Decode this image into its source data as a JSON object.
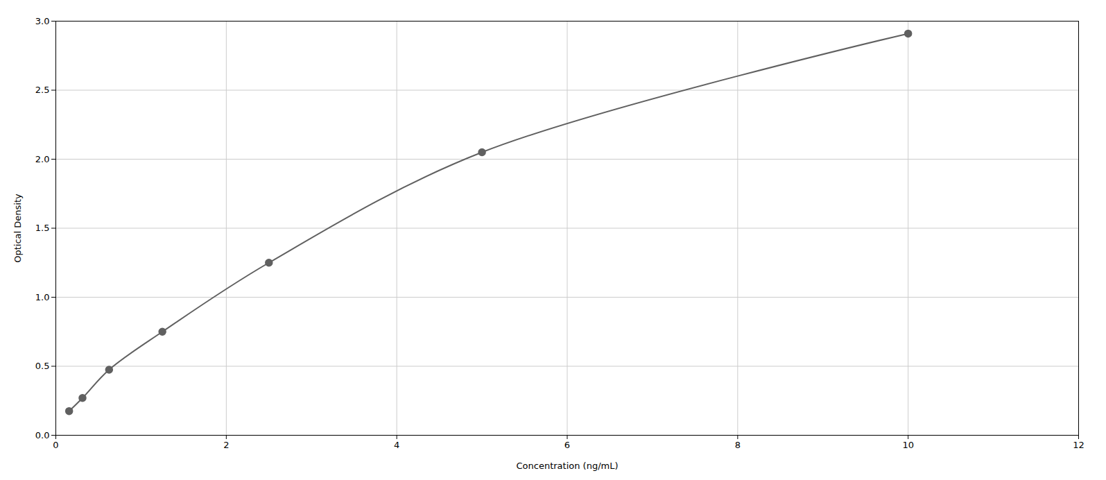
{
  "chart_data": {
    "type": "line",
    "marker": "circle",
    "x": [
      0.156,
      0.313,
      0.625,
      1.25,
      2.5,
      5.0,
      10.0
    ],
    "values": [
      0.175,
      0.27,
      0.475,
      0.75,
      1.25,
      2.05,
      2.91
    ],
    "color": "#606060",
    "xlabel": "Concentration (ng/mL)",
    "ylabel": "Optical Density",
    "xlim": [
      0,
      12
    ],
    "ylim": [
      0,
      3.0
    ],
    "xticks": [
      0,
      2,
      4,
      6,
      8,
      10,
      12
    ],
    "yticks": [
      {
        "value": 0,
        "label": "0.0"
      },
      0.5,
      {
        "value": 1.0,
        "label": "1.0"
      },
      1.5,
      {
        "value": 2.0,
        "label": "2.0"
      },
      2.5,
      {
        "value": 3.0,
        "label": "3.0"
      }
    ],
    "grid": true
  }
}
